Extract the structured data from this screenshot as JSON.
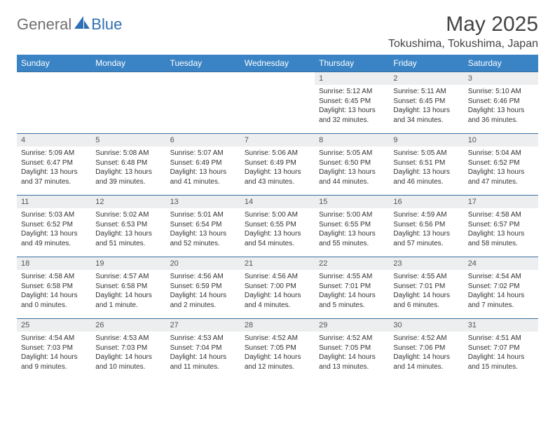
{
  "logo": {
    "general": "General",
    "blue": "Blue"
  },
  "title": "May 2025",
  "location": "Tokushima, Tokushima, Japan",
  "day_headers": [
    "Sunday",
    "Monday",
    "Tuesday",
    "Wednesday",
    "Thursday",
    "Friday",
    "Saturday"
  ],
  "colors": {
    "header_bg": "#3a84c5",
    "header_fg": "#ffffff",
    "row_rule": "#3a6fa0",
    "daynum_bg": "#eceeef",
    "text": "#333333",
    "logo_gray": "#6f6f6f",
    "logo_blue": "#2f6fb3"
  },
  "weeks": [
    [
      null,
      null,
      null,
      null,
      {
        "n": "1",
        "sr": "Sunrise: 5:12 AM",
        "ss": "Sunset: 6:45 PM",
        "d1": "Daylight: 13 hours",
        "d2": "and 32 minutes."
      },
      {
        "n": "2",
        "sr": "Sunrise: 5:11 AM",
        "ss": "Sunset: 6:45 PM",
        "d1": "Daylight: 13 hours",
        "d2": "and 34 minutes."
      },
      {
        "n": "3",
        "sr": "Sunrise: 5:10 AM",
        "ss": "Sunset: 6:46 PM",
        "d1": "Daylight: 13 hours",
        "d2": "and 36 minutes."
      }
    ],
    [
      {
        "n": "4",
        "sr": "Sunrise: 5:09 AM",
        "ss": "Sunset: 6:47 PM",
        "d1": "Daylight: 13 hours",
        "d2": "and 37 minutes."
      },
      {
        "n": "5",
        "sr": "Sunrise: 5:08 AM",
        "ss": "Sunset: 6:48 PM",
        "d1": "Daylight: 13 hours",
        "d2": "and 39 minutes."
      },
      {
        "n": "6",
        "sr": "Sunrise: 5:07 AM",
        "ss": "Sunset: 6:49 PM",
        "d1": "Daylight: 13 hours",
        "d2": "and 41 minutes."
      },
      {
        "n": "7",
        "sr": "Sunrise: 5:06 AM",
        "ss": "Sunset: 6:49 PM",
        "d1": "Daylight: 13 hours",
        "d2": "and 43 minutes."
      },
      {
        "n": "8",
        "sr": "Sunrise: 5:05 AM",
        "ss": "Sunset: 6:50 PM",
        "d1": "Daylight: 13 hours",
        "d2": "and 44 minutes."
      },
      {
        "n": "9",
        "sr": "Sunrise: 5:05 AM",
        "ss": "Sunset: 6:51 PM",
        "d1": "Daylight: 13 hours",
        "d2": "and 46 minutes."
      },
      {
        "n": "10",
        "sr": "Sunrise: 5:04 AM",
        "ss": "Sunset: 6:52 PM",
        "d1": "Daylight: 13 hours",
        "d2": "and 47 minutes."
      }
    ],
    [
      {
        "n": "11",
        "sr": "Sunrise: 5:03 AM",
        "ss": "Sunset: 6:52 PM",
        "d1": "Daylight: 13 hours",
        "d2": "and 49 minutes."
      },
      {
        "n": "12",
        "sr": "Sunrise: 5:02 AM",
        "ss": "Sunset: 6:53 PM",
        "d1": "Daylight: 13 hours",
        "d2": "and 51 minutes."
      },
      {
        "n": "13",
        "sr": "Sunrise: 5:01 AM",
        "ss": "Sunset: 6:54 PM",
        "d1": "Daylight: 13 hours",
        "d2": "and 52 minutes."
      },
      {
        "n": "14",
        "sr": "Sunrise: 5:00 AM",
        "ss": "Sunset: 6:55 PM",
        "d1": "Daylight: 13 hours",
        "d2": "and 54 minutes."
      },
      {
        "n": "15",
        "sr": "Sunrise: 5:00 AM",
        "ss": "Sunset: 6:55 PM",
        "d1": "Daylight: 13 hours",
        "d2": "and 55 minutes."
      },
      {
        "n": "16",
        "sr": "Sunrise: 4:59 AM",
        "ss": "Sunset: 6:56 PM",
        "d1": "Daylight: 13 hours",
        "d2": "and 57 minutes."
      },
      {
        "n": "17",
        "sr": "Sunrise: 4:58 AM",
        "ss": "Sunset: 6:57 PM",
        "d1": "Daylight: 13 hours",
        "d2": "and 58 minutes."
      }
    ],
    [
      {
        "n": "18",
        "sr": "Sunrise: 4:58 AM",
        "ss": "Sunset: 6:58 PM",
        "d1": "Daylight: 14 hours",
        "d2": "and 0 minutes."
      },
      {
        "n": "19",
        "sr": "Sunrise: 4:57 AM",
        "ss": "Sunset: 6:58 PM",
        "d1": "Daylight: 14 hours",
        "d2": "and 1 minute."
      },
      {
        "n": "20",
        "sr": "Sunrise: 4:56 AM",
        "ss": "Sunset: 6:59 PM",
        "d1": "Daylight: 14 hours",
        "d2": "and 2 minutes."
      },
      {
        "n": "21",
        "sr": "Sunrise: 4:56 AM",
        "ss": "Sunset: 7:00 PM",
        "d1": "Daylight: 14 hours",
        "d2": "and 4 minutes."
      },
      {
        "n": "22",
        "sr": "Sunrise: 4:55 AM",
        "ss": "Sunset: 7:01 PM",
        "d1": "Daylight: 14 hours",
        "d2": "and 5 minutes."
      },
      {
        "n": "23",
        "sr": "Sunrise: 4:55 AM",
        "ss": "Sunset: 7:01 PM",
        "d1": "Daylight: 14 hours",
        "d2": "and 6 minutes."
      },
      {
        "n": "24",
        "sr": "Sunrise: 4:54 AM",
        "ss": "Sunset: 7:02 PM",
        "d1": "Daylight: 14 hours",
        "d2": "and 7 minutes."
      }
    ],
    [
      {
        "n": "25",
        "sr": "Sunrise: 4:54 AM",
        "ss": "Sunset: 7:03 PM",
        "d1": "Daylight: 14 hours",
        "d2": "and 9 minutes."
      },
      {
        "n": "26",
        "sr": "Sunrise: 4:53 AM",
        "ss": "Sunset: 7:03 PM",
        "d1": "Daylight: 14 hours",
        "d2": "and 10 minutes."
      },
      {
        "n": "27",
        "sr": "Sunrise: 4:53 AM",
        "ss": "Sunset: 7:04 PM",
        "d1": "Daylight: 14 hours",
        "d2": "and 11 minutes."
      },
      {
        "n": "28",
        "sr": "Sunrise: 4:52 AM",
        "ss": "Sunset: 7:05 PM",
        "d1": "Daylight: 14 hours",
        "d2": "and 12 minutes."
      },
      {
        "n": "29",
        "sr": "Sunrise: 4:52 AM",
        "ss": "Sunset: 7:05 PM",
        "d1": "Daylight: 14 hours",
        "d2": "and 13 minutes."
      },
      {
        "n": "30",
        "sr": "Sunrise: 4:52 AM",
        "ss": "Sunset: 7:06 PM",
        "d1": "Daylight: 14 hours",
        "d2": "and 14 minutes."
      },
      {
        "n": "31",
        "sr": "Sunrise: 4:51 AM",
        "ss": "Sunset: 7:07 PM",
        "d1": "Daylight: 14 hours",
        "d2": "and 15 minutes."
      }
    ]
  ]
}
